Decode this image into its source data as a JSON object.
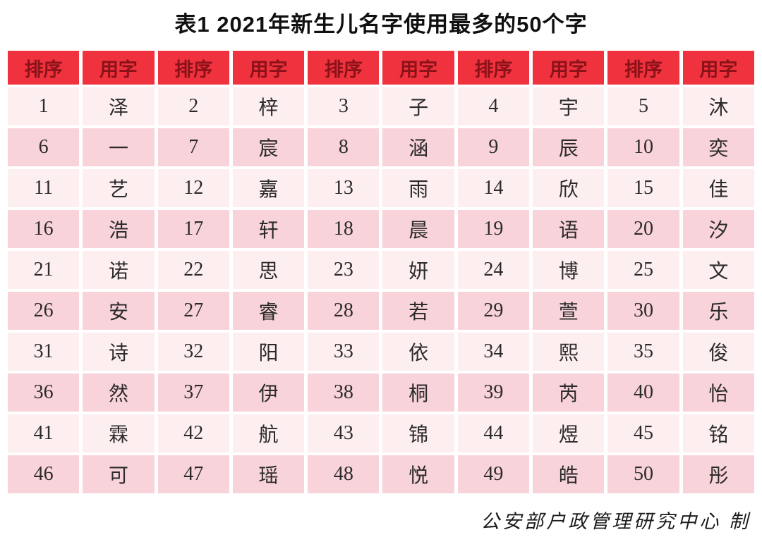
{
  "page": {
    "title": "表1  2021年新生儿名字使用最多的50个字",
    "footer_attribution": "公安部户政管理研究中心 制"
  },
  "chart_data": {
    "type": "table",
    "title": "表1 2021年新生儿名字使用最多的50个字",
    "column_headers": [
      "排序",
      "用字"
    ],
    "header_repeat": 5,
    "header_row": [
      "排序",
      "用字",
      "排序",
      "用字",
      "排序",
      "用字",
      "排序",
      "用字",
      "排序",
      "用字"
    ],
    "rows": [
      [
        "1",
        "泽",
        "2",
        "梓",
        "3",
        "子",
        "4",
        "宇",
        "5",
        "沐"
      ],
      [
        "6",
        "一",
        "7",
        "宸",
        "8",
        "涵",
        "9",
        "辰",
        "10",
        "奕"
      ],
      [
        "11",
        "艺",
        "12",
        "嘉",
        "13",
        "雨",
        "14",
        "欣",
        "15",
        "佳"
      ],
      [
        "16",
        "浩",
        "17",
        "轩",
        "18",
        "晨",
        "19",
        "语",
        "20",
        "汐"
      ],
      [
        "21",
        "诺",
        "22",
        "思",
        "23",
        "妍",
        "24",
        "博",
        "25",
        "文"
      ],
      [
        "26",
        "安",
        "27",
        "睿",
        "28",
        "若",
        "29",
        "萱",
        "30",
        "乐"
      ],
      [
        "31",
        "诗",
        "32",
        "阳",
        "33",
        "依",
        "34",
        "熙",
        "35",
        "俊"
      ],
      [
        "36",
        "然",
        "37",
        "伊",
        "38",
        "桐",
        "39",
        "芮",
        "40",
        "怡"
      ],
      [
        "41",
        "霖",
        "42",
        "航",
        "43",
        "锦",
        "44",
        "煜",
        "45",
        "铭"
      ],
      [
        "46",
        "可",
        "47",
        "瑶",
        "48",
        "悦",
        "49",
        "皓",
        "50",
        "彤"
      ]
    ]
  },
  "colors": {
    "header_bg": "#f0323e",
    "header_text": "#8a1218",
    "row_light": "#fdeef0",
    "row_dark": "#f9d3da",
    "cell_text": "#2b2b2b"
  }
}
